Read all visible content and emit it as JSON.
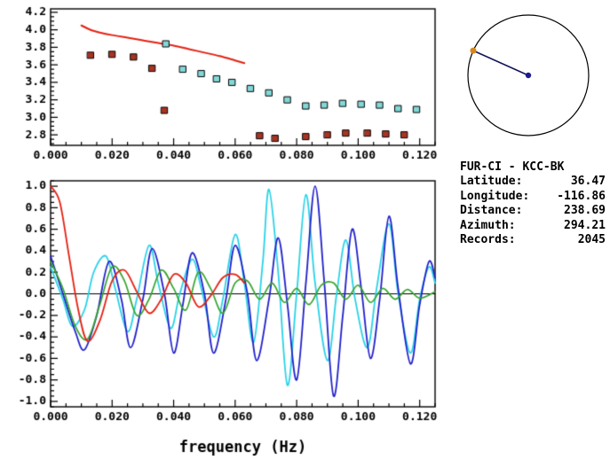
{
  "station_info": {
    "title": "FUR-CI - KCC-BK",
    "rows": [
      {
        "label": "Latitude:",
        "value": "36.47"
      },
      {
        "label": "Longitude:",
        "value": "-116.86"
      },
      {
        "label": "Distance:",
        "value": "238.69"
      },
      {
        "label": "Azimuth:",
        "value": "294.21"
      },
      {
        "label": "Records:",
        "value": "2045"
      }
    ]
  },
  "azimuth_plot": {
    "azimuth_deg": 294.21,
    "circle_color": "#000000",
    "line_color": "#14145a",
    "center_dot_color": "#1c1c8e",
    "edge_dot_color": "#d4881c"
  },
  "chart_data": [
    {
      "type": "line",
      "panel": "dispersion",
      "title": "",
      "xlabel": "",
      "ylabel": "",
      "xlim": [
        0,
        0.125
      ],
      "ylim": [
        2.68,
        4.24
      ],
      "grid": false,
      "xticks": {
        "major": [
          0,
          0.02,
          0.04,
          0.06,
          0.08,
          0.1,
          0.12
        ],
        "labels": [
          "0.000",
          "0.020",
          "0.040",
          "0.060",
          "0.080",
          "0.100",
          "0.120"
        ],
        "minor_step": 0.005
      },
      "yticks": {
        "major": [
          2.8,
          3.0,
          3.2,
          3.4,
          3.6,
          3.8,
          4.0,
          4.2
        ],
        "labels": [
          "2.8",
          "3.0",
          "3.2",
          "3.4",
          "3.6",
          "3.8",
          "4.0",
          "4.2"
        ],
        "minor_step": 0.05
      },
      "series": [
        {
          "name": "reference-dispersion-curve",
          "kind": "line",
          "color": "#e52112",
          "width": 2,
          "points": [
            [
              0.01,
              4.05
            ],
            [
              0.013,
              4.0
            ],
            [
              0.016,
              3.97
            ],
            [
              0.02,
              3.94
            ],
            [
              0.025,
              3.91
            ],
            [
              0.03,
              3.88
            ],
            [
              0.035,
              3.85
            ],
            [
              0.04,
              3.82
            ],
            [
              0.045,
              3.78
            ],
            [
              0.05,
              3.74
            ],
            [
              0.055,
              3.7
            ],
            [
              0.06,
              3.65
            ],
            [
              0.063,
              3.62
            ]
          ]
        },
        {
          "name": "measured-dispersion-red",
          "kind": "scatter",
          "color": "#aa3322",
          "points": [
            [
              0.013,
              3.71
            ],
            [
              0.02,
              3.72
            ],
            [
              0.027,
              3.69
            ],
            [
              0.033,
              3.56
            ],
            [
              0.037,
              3.08
            ],
            [
              0.068,
              2.79
            ],
            [
              0.073,
              2.76
            ],
            [
              0.083,
              2.78
            ],
            [
              0.09,
              2.8
            ],
            [
              0.096,
              2.82
            ],
            [
              0.103,
              2.82
            ],
            [
              0.109,
              2.81
            ],
            [
              0.115,
              2.8
            ]
          ]
        },
        {
          "name": "measured-dispersion-cyan",
          "kind": "scatter",
          "color": "#82d8d8",
          "points": [
            [
              0.0375,
              3.84
            ],
            [
              0.043,
              3.55
            ],
            [
              0.049,
              3.5
            ],
            [
              0.054,
              3.44
            ],
            [
              0.059,
              3.4
            ],
            [
              0.065,
              3.33
            ],
            [
              0.071,
              3.28
            ],
            [
              0.077,
              3.2
            ],
            [
              0.083,
              3.13
            ],
            [
              0.089,
              3.14
            ],
            [
              0.095,
              3.16
            ],
            [
              0.101,
              3.15
            ],
            [
              0.107,
              3.14
            ],
            [
              0.113,
              3.1
            ],
            [
              0.119,
              3.09
            ]
          ]
        }
      ]
    },
    {
      "type": "line",
      "panel": "correlation",
      "title": "",
      "xlabel": "frequency (Hz)",
      "ylabel": "",
      "xlim": [
        0,
        0.125
      ],
      "ylim": [
        -1.05,
        1.05
      ],
      "grid": false,
      "zero_line": true,
      "xticks": {
        "major": [
          0,
          0.02,
          0.04,
          0.06,
          0.08,
          0.1,
          0.12
        ],
        "labels": [
          "0.000",
          "0.020",
          "0.040",
          "0.060",
          "0.080",
          "0.100",
          "0.120"
        ],
        "minor_step": 0.005
      },
      "yticks": {
        "major": [
          -1.0,
          -0.8,
          -0.6,
          -0.4,
          -0.2,
          0.0,
          0.2,
          0.4,
          0.6,
          0.8,
          1.0
        ],
        "labels": [
          "-1.0",
          "-0.8",
          "-0.6",
          "-0.4",
          "-0.2",
          "0.0",
          "0.2",
          "0.4",
          "0.6",
          "0.8",
          "1.0"
        ],
        "minor_step": 0.05
      },
      "series": [
        {
          "name": "waveform-cyan",
          "kind": "line",
          "color": "#29d3e8",
          "width": 1.8,
          "points": [
            [
              0,
              0.25
            ],
            [
              0.004,
              -0.05
            ],
            [
              0.007,
              -0.3
            ],
            [
              0.011,
              -0.15
            ],
            [
              0.014,
              0.2
            ],
            [
              0.018,
              0.35
            ],
            [
              0.021,
              0.05
            ],
            [
              0.025,
              -0.35
            ],
            [
              0.028,
              -0.05
            ],
            [
              0.032,
              0.45
            ],
            [
              0.035,
              0.1
            ],
            [
              0.039,
              -0.32
            ],
            [
              0.042,
              0.0
            ],
            [
              0.046,
              0.32
            ],
            [
              0.049,
              0.05
            ],
            [
              0.053,
              -0.4
            ],
            [
              0.056,
              -0.05
            ],
            [
              0.06,
              0.55
            ],
            [
              0.063,
              0.1
            ],
            [
              0.066,
              -0.45
            ],
            [
              0.069,
              0.3
            ],
            [
              0.071,
              0.97
            ],
            [
              0.074,
              0.2
            ],
            [
              0.077,
              -0.85
            ],
            [
              0.08,
              0.0
            ],
            [
              0.083,
              0.92
            ],
            [
              0.086,
              0.1
            ],
            [
              0.09,
              -0.62
            ],
            [
              0.093,
              0.0
            ],
            [
              0.096,
              0.5
            ],
            [
              0.099,
              -0.05
            ],
            [
              0.103,
              -0.5
            ],
            [
              0.106,
              0.05
            ],
            [
              0.11,
              0.65
            ],
            [
              0.113,
              0.0
            ],
            [
              0.117,
              -0.55
            ],
            [
              0.12,
              -0.05
            ],
            [
              0.123,
              0.25
            ],
            [
              0.125,
              0.1
            ]
          ]
        },
        {
          "name": "waveform-blue",
          "kind": "line",
          "color": "#2121cc",
          "width": 1.8,
          "points": [
            [
              0,
              0.35
            ],
            [
              0.004,
              0.0
            ],
            [
              0.008,
              -0.35
            ],
            [
              0.011,
              -0.52
            ],
            [
              0.015,
              -0.2
            ],
            [
              0.019,
              0.3
            ],
            [
              0.023,
              -0.05
            ],
            [
              0.026,
              -0.5
            ],
            [
              0.03,
              -0.05
            ],
            [
              0.033,
              0.42
            ],
            [
              0.037,
              0.0
            ],
            [
              0.04,
              -0.55
            ],
            [
              0.043,
              -0.1
            ],
            [
              0.046,
              0.38
            ],
            [
              0.05,
              0.0
            ],
            [
              0.053,
              -0.55
            ],
            [
              0.057,
              -0.05
            ],
            [
              0.06,
              0.45
            ],
            [
              0.064,
              0.0
            ],
            [
              0.067,
              -0.62
            ],
            [
              0.071,
              -0.05
            ],
            [
              0.074,
              0.52
            ],
            [
              0.077,
              -0.1
            ],
            [
              0.08,
              -0.8
            ],
            [
              0.083,
              0.1
            ],
            [
              0.086,
              1.0
            ],
            [
              0.089,
              0.1
            ],
            [
              0.092,
              -0.95
            ],
            [
              0.095,
              -0.2
            ],
            [
              0.098,
              0.6
            ],
            [
              0.101,
              0.05
            ],
            [
              0.104,
              -0.6
            ],
            [
              0.107,
              -0.05
            ],
            [
              0.11,
              0.72
            ],
            [
              0.113,
              0.05
            ],
            [
              0.117,
              -0.65
            ],
            [
              0.12,
              -0.1
            ],
            [
              0.123,
              0.3
            ],
            [
              0.125,
              0.15
            ]
          ]
        },
        {
          "name": "waveform-green",
          "kind": "line",
          "color": "#35a52d",
          "width": 1.7,
          "points": [
            [
              0,
              0.3
            ],
            [
              0.004,
              0.05
            ],
            [
              0.008,
              -0.3
            ],
            [
              0.012,
              -0.42
            ],
            [
              0.016,
              -0.1
            ],
            [
              0.02,
              0.25
            ],
            [
              0.024,
              0.12
            ],
            [
              0.028,
              -0.2
            ],
            [
              0.032,
              -0.05
            ],
            [
              0.036,
              0.22
            ],
            [
              0.04,
              0.05
            ],
            [
              0.044,
              -0.15
            ],
            [
              0.048,
              0.2
            ],
            [
              0.052,
              0.05
            ],
            [
              0.056,
              -0.18
            ],
            [
              0.06,
              0.1
            ],
            [
              0.064,
              0.12
            ],
            [
              0.068,
              -0.05
            ],
            [
              0.072,
              0.1
            ],
            [
              0.076,
              -0.08
            ],
            [
              0.08,
              0.05
            ],
            [
              0.084,
              -0.1
            ],
            [
              0.088,
              0.08
            ],
            [
              0.092,
              0.1
            ],
            [
              0.096,
              -0.05
            ],
            [
              0.1,
              0.08
            ],
            [
              0.104,
              -0.08
            ],
            [
              0.108,
              0.05
            ],
            [
              0.112,
              -0.05
            ],
            [
              0.116,
              0.04
            ],
            [
              0.12,
              -0.04
            ],
            [
              0.125,
              0.02
            ]
          ]
        },
        {
          "name": "waveform-red",
          "kind": "line",
          "color": "#e52112",
          "width": 1.8,
          "points": [
            [
              0,
              1.0
            ],
            [
              0.003,
              0.85
            ],
            [
              0.006,
              0.35
            ],
            [
              0.009,
              -0.15
            ],
            [
              0.012,
              -0.44
            ],
            [
              0.016,
              -0.25
            ],
            [
              0.02,
              0.12
            ],
            [
              0.024,
              0.22
            ],
            [
              0.028,
              0.02
            ],
            [
              0.032,
              -0.18
            ],
            [
              0.036,
              -0.05
            ],
            [
              0.04,
              0.18
            ],
            [
              0.044,
              0.1
            ],
            [
              0.048,
              -0.12
            ],
            [
              0.052,
              -0.02
            ],
            [
              0.056,
              0.15
            ],
            [
              0.06,
              0.18
            ],
            [
              0.063,
              0.1
            ]
          ]
        }
      ]
    }
  ]
}
